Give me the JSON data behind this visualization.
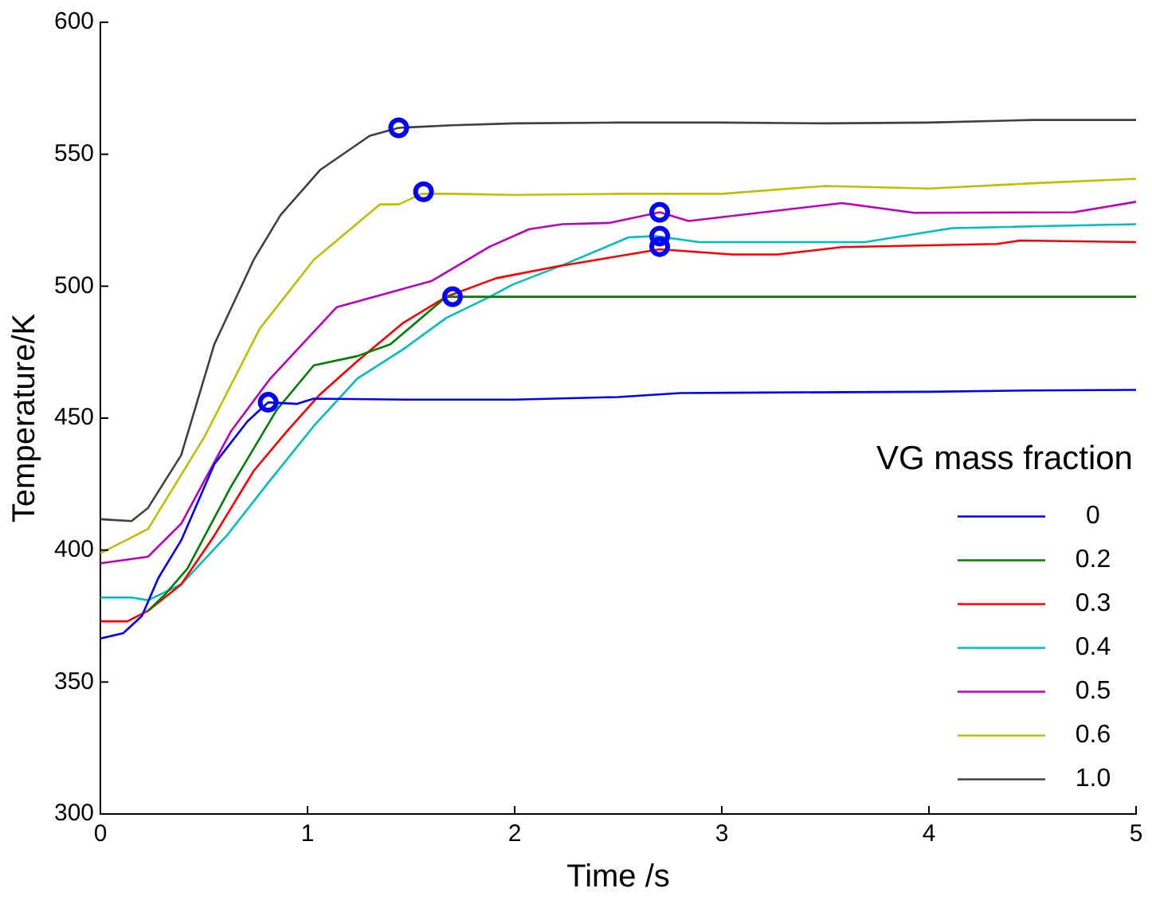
{
  "chart_data": {
    "type": "line",
    "xlabel": "Time /s",
    "ylabel": "Temperature/K",
    "legend_title": "VG mass fraction",
    "legend": "bottom right",
    "grid": false,
    "marker": "none",
    "line_style": "solid",
    "xlim": [
      0,
      5
    ],
    "xticks": [
      0,
      1,
      2,
      3,
      4,
      5
    ],
    "ylim": [
      300,
      600
    ],
    "yticks": [
      300,
      350,
      400,
      450,
      500,
      550,
      600
    ],
    "series": [
      {
        "name": "0",
        "color": "#0000ff",
        "x": [
          0,
          0.11,
          0.2,
          0.28,
          0.39,
          0.55,
          0.71,
          0.81,
          0.95,
          1.03,
          1.5,
          2.0,
          2.5,
          2.8,
          3.2,
          4.0,
          4.5,
          5.0
        ],
        "values": [
          366.5,
          368.5,
          375,
          389.5,
          403.7,
          432.6,
          448.8,
          456,
          455.4,
          457.4,
          457,
          457,
          458,
          459.5,
          459.7,
          460,
          460.5,
          460.7
        ]
      },
      {
        "name": "0.2",
        "color": "#008000",
        "x": [
          0.23,
          0.31,
          0.42,
          0.63,
          0.85,
          1.03,
          1.24,
          1.4,
          1.67,
          1.8,
          2.5,
          3.0,
          3.5,
          4.0,
          4.5,
          5.0
        ],
        "values": [
          377,
          383,
          393,
          424,
          453,
          470,
          473.5,
          478,
          496,
          496,
          496,
          496,
          496,
          496,
          496,
          496
        ]
      },
      {
        "name": "0.3",
        "color": "#ff0000",
        "x": [
          0,
          0.13,
          0.23,
          0.39,
          0.55,
          0.74,
          0.9,
          1.06,
          1.24,
          1.46,
          1.67,
          1.91,
          2.2,
          2.7,
          3.05,
          3.27,
          3.58,
          4.33,
          4.44,
          5.0
        ],
        "values": [
          373,
          373,
          377,
          387,
          405.5,
          430,
          445,
          459,
          471.6,
          486,
          496,
          503,
          507.4,
          514,
          512,
          512,
          514.8,
          516,
          517.3,
          516.7
        ]
      },
      {
        "name": "0.4",
        "color": "#00bfbf",
        "x": [
          0,
          0.15,
          0.23,
          0.39,
          0.61,
          0.82,
          1.03,
          1.24,
          1.46,
          1.67,
          1.88,
          1.99,
          2.25,
          2.55,
          2.68,
          2.89,
          3.69,
          4.11,
          5.0
        ],
        "values": [
          382,
          382,
          381,
          387,
          405.5,
          426.5,
          447,
          465,
          476,
          488,
          496,
          500.6,
          508.6,
          518.5,
          519,
          516.7,
          516.7,
          522,
          523.5
        ]
      },
      {
        "name": "0.5",
        "color": "#bf00bf",
        "x": [
          0,
          0.23,
          0.39,
          0.63,
          0.82,
          1.14,
          1.46,
          1.6,
          1.88,
          2.07,
          2.23,
          2.46,
          2.7,
          2.84,
          3.58,
          3.93,
          4.7,
          5.0
        ],
        "values": [
          395,
          397.5,
          410,
          445,
          465,
          492,
          499,
          502,
          515,
          521.6,
          523.5,
          524,
          528,
          524.7,
          531.5,
          527.8,
          528,
          532
        ]
      },
      {
        "name": "0.6",
        "color": "#bfbf00",
        "x": [
          0,
          0.23,
          0.5,
          0.77,
          1.03,
          1.35,
          1.44,
          1.55,
          1.7,
          2.0,
          2.5,
          3.0,
          3.5,
          4.0,
          4.5,
          5.0
        ],
        "values": [
          398.8,
          408,
          442.6,
          484,
          510,
          531,
          531,
          535,
          535,
          534.6,
          535,
          535,
          538,
          537,
          539,
          540.7
        ]
      },
      {
        "name": "1.0",
        "color": "#404040",
        "x": [
          0,
          0.15,
          0.23,
          0.39,
          0.55,
          0.74,
          0.87,
          1.06,
          1.3,
          1.44,
          1.7,
          2.0,
          2.5,
          3.0,
          3.5,
          4.0,
          4.5,
          5.0
        ],
        "values": [
          411.7,
          411,
          416,
          436,
          478,
          510,
          527,
          544,
          557,
          560,
          561,
          561.7,
          562,
          562,
          561.7,
          562,
          563,
          563
        ]
      },
      {
        "type": "scatter",
        "marker": "circle",
        "color": "#0000ff",
        "x": [
          0.81,
          1.44,
          1.56,
          1.7,
          2.7,
          2.7,
          2.7
        ],
        "values": [
          456,
          560,
          535.8,
          496,
          528,
          519,
          515
        ]
      }
    ]
  }
}
